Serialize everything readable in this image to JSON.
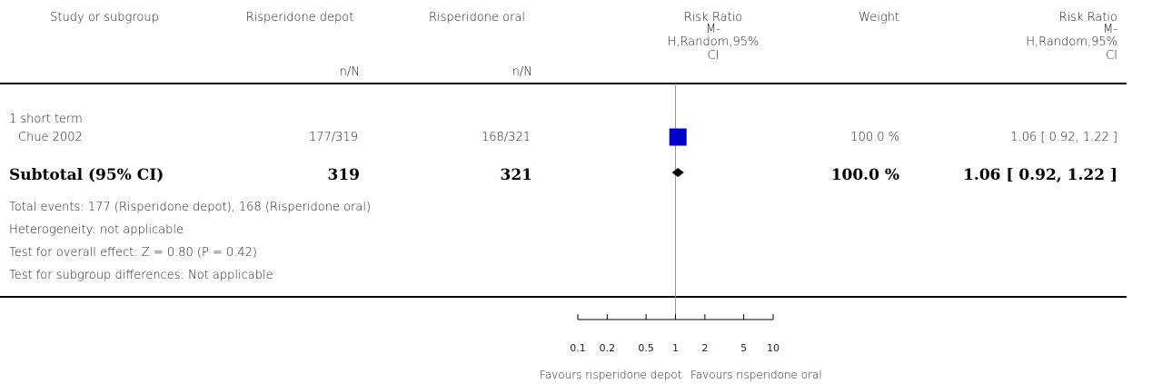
{
  "header": {
    "study": "Study or subgroup",
    "group1": "Risperidone depot",
    "group2": "Risperidone oral",
    "n1": "n/N",
    "n2": "n/N",
    "rr_plot_title": [
      "Risk Ratio",
      "M-",
      "H,Random,95%",
      "CI"
    ],
    "weight": "Weight",
    "rr_col_title": [
      "Risk Ratio",
      "M-",
      "H,Random,95%",
      "CI"
    ]
  },
  "subgroup_label": "1 short term",
  "study_row": {
    "name": "Chue 2002",
    "events1": "177/319",
    "events2": "168/321",
    "weight": "100.0 %",
    "rr": "1.06 [ 0.92, 1.22 ]"
  },
  "subtotal_row": {
    "label": "Subtotal (95% CI)",
    "n1": "319",
    "n2": "321",
    "weight": "100.0 %",
    "rr": "1.06 [ 0.92, 1.22 ]"
  },
  "notes": [
    "Total events: 177 (Risperidone depot), 168 (Risperidone oral)",
    "Heterogeneity: not applicable",
    "Test for overall effect: Z = 0.80 (P = 0.42)",
    "Test for subgroup differences: Not applicable"
  ],
  "favours_left": "Favours risperidone depot",
  "favours_right": "Favours risperidone oral",
  "colors": {
    "study_box": "#0000cc",
    "diamond": "#000000",
    "axis": "#000000",
    "line_of_no_effect": "#999999"
  },
  "chart_data": {
    "type": "forest",
    "scale": "log",
    "xlim": [
      0.1,
      10
    ],
    "ticks": [
      0.1,
      0.2,
      0.5,
      1,
      2,
      5,
      10
    ],
    "tick_labels": [
      "0.1",
      "0.2",
      "0.5",
      "1",
      "2",
      "5",
      "10"
    ],
    "null_value": 1,
    "studies": [
      {
        "name": "Chue 2002",
        "rr": 1.06,
        "ci": [
          0.92,
          1.22
        ],
        "weight": 100.0
      }
    ],
    "pooled": {
      "name": "Subtotal (95% CI)",
      "rr": 1.06,
      "ci": [
        0.92,
        1.22
      ]
    }
  }
}
